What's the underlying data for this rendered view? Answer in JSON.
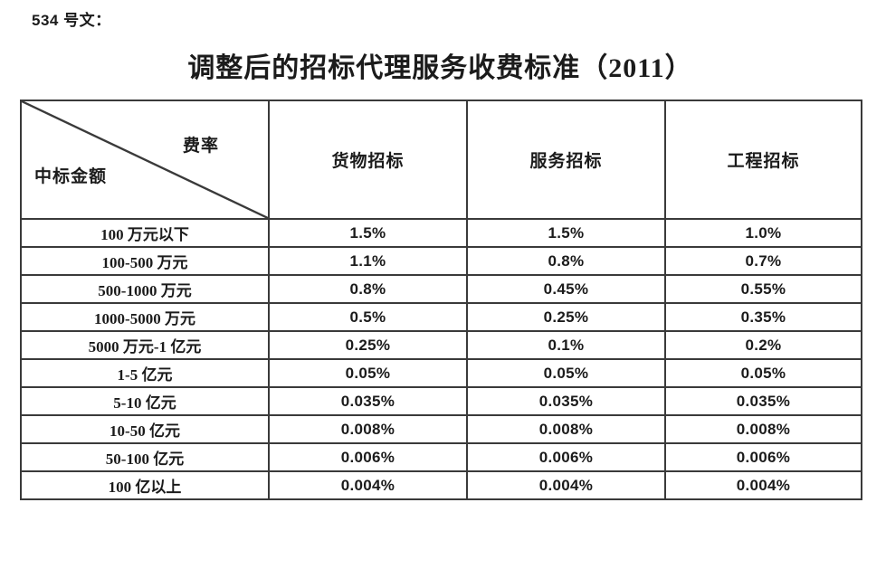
{
  "doc": {
    "ref": "534 号文：",
    "title": "调整后的招标代理服务收费标准（2011）"
  },
  "table": {
    "corner": {
      "rate_label": "费率",
      "amount_label": "中标金额"
    },
    "columns": [
      "货物招标",
      "服务招标",
      "工程招标"
    ],
    "rows": [
      {
        "range": "100 万元以下",
        "values": [
          "1.5%",
          "1.5%",
          "1.0%"
        ]
      },
      {
        "range": "100-500 万元",
        "values": [
          "1.1%",
          "0.8%",
          "0.7%"
        ]
      },
      {
        "range": "500-1000 万元",
        "values": [
          "0.8%",
          "0.45%",
          "0.55%"
        ]
      },
      {
        "range": "1000-5000 万元",
        "values": [
          "0.5%",
          "0.25%",
          "0.35%"
        ]
      },
      {
        "range": "5000 万元-1 亿元",
        "values": [
          "0.25%",
          "0.1%",
          "0.2%"
        ]
      },
      {
        "range": "1-5 亿元",
        "values": [
          "0.05%",
          "0.05%",
          "0.05%"
        ]
      },
      {
        "range": "5-10 亿元",
        "values": [
          "0.035%",
          "0.035%",
          "0.035%"
        ]
      },
      {
        "range": "10-50 亿元",
        "values": [
          "0.008%",
          "0.008%",
          "0.008%"
        ]
      },
      {
        "range": "50-100 亿元",
        "values": [
          "0.006%",
          "0.006%",
          "0.006%"
        ]
      },
      {
        "range": "100 亿以上",
        "values": [
          "0.004%",
          "0.004%",
          "0.004%"
        ]
      }
    ]
  },
  "colors": {
    "border": "#3a3a3a",
    "text": "#1b1b1b",
    "background": "#ffffff"
  }
}
